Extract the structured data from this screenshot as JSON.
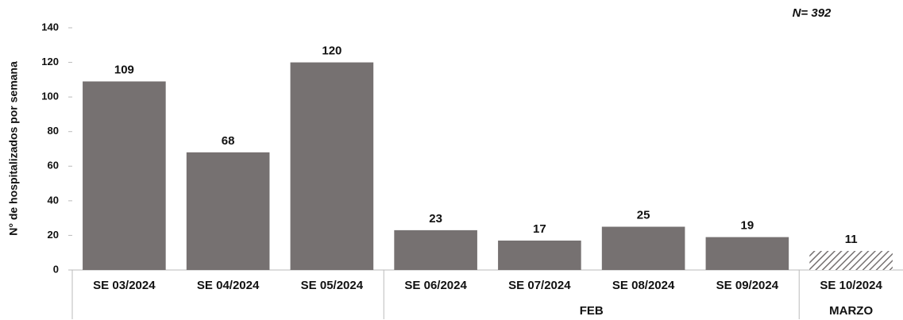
{
  "chart_data": {
    "type": "bar",
    "y_label": "N° de hospitalizados por semana",
    "annotation": "N= 392",
    "categories": [
      "SE 03/2024",
      "SE 04/2024",
      "SE 05/2024",
      "SE 06/2024",
      "SE 07/2024",
      "SE 08/2024",
      "SE 09/2024",
      "SE 10/2024"
    ],
    "groups": [
      null,
      null,
      null,
      "FEB",
      "FEB",
      "FEB",
      "FEB",
      "MARZO"
    ],
    "values": [
      109,
      68,
      120,
      23,
      17,
      25,
      19,
      11
    ],
    "hatched": [
      false,
      false,
      false,
      false,
      false,
      false,
      false,
      true
    ],
    "color": "#767171",
    "ylim": [
      0,
      140
    ],
    "yticks": [
      0,
      20,
      40,
      60,
      80,
      100,
      120,
      140
    ],
    "grid": false
  }
}
